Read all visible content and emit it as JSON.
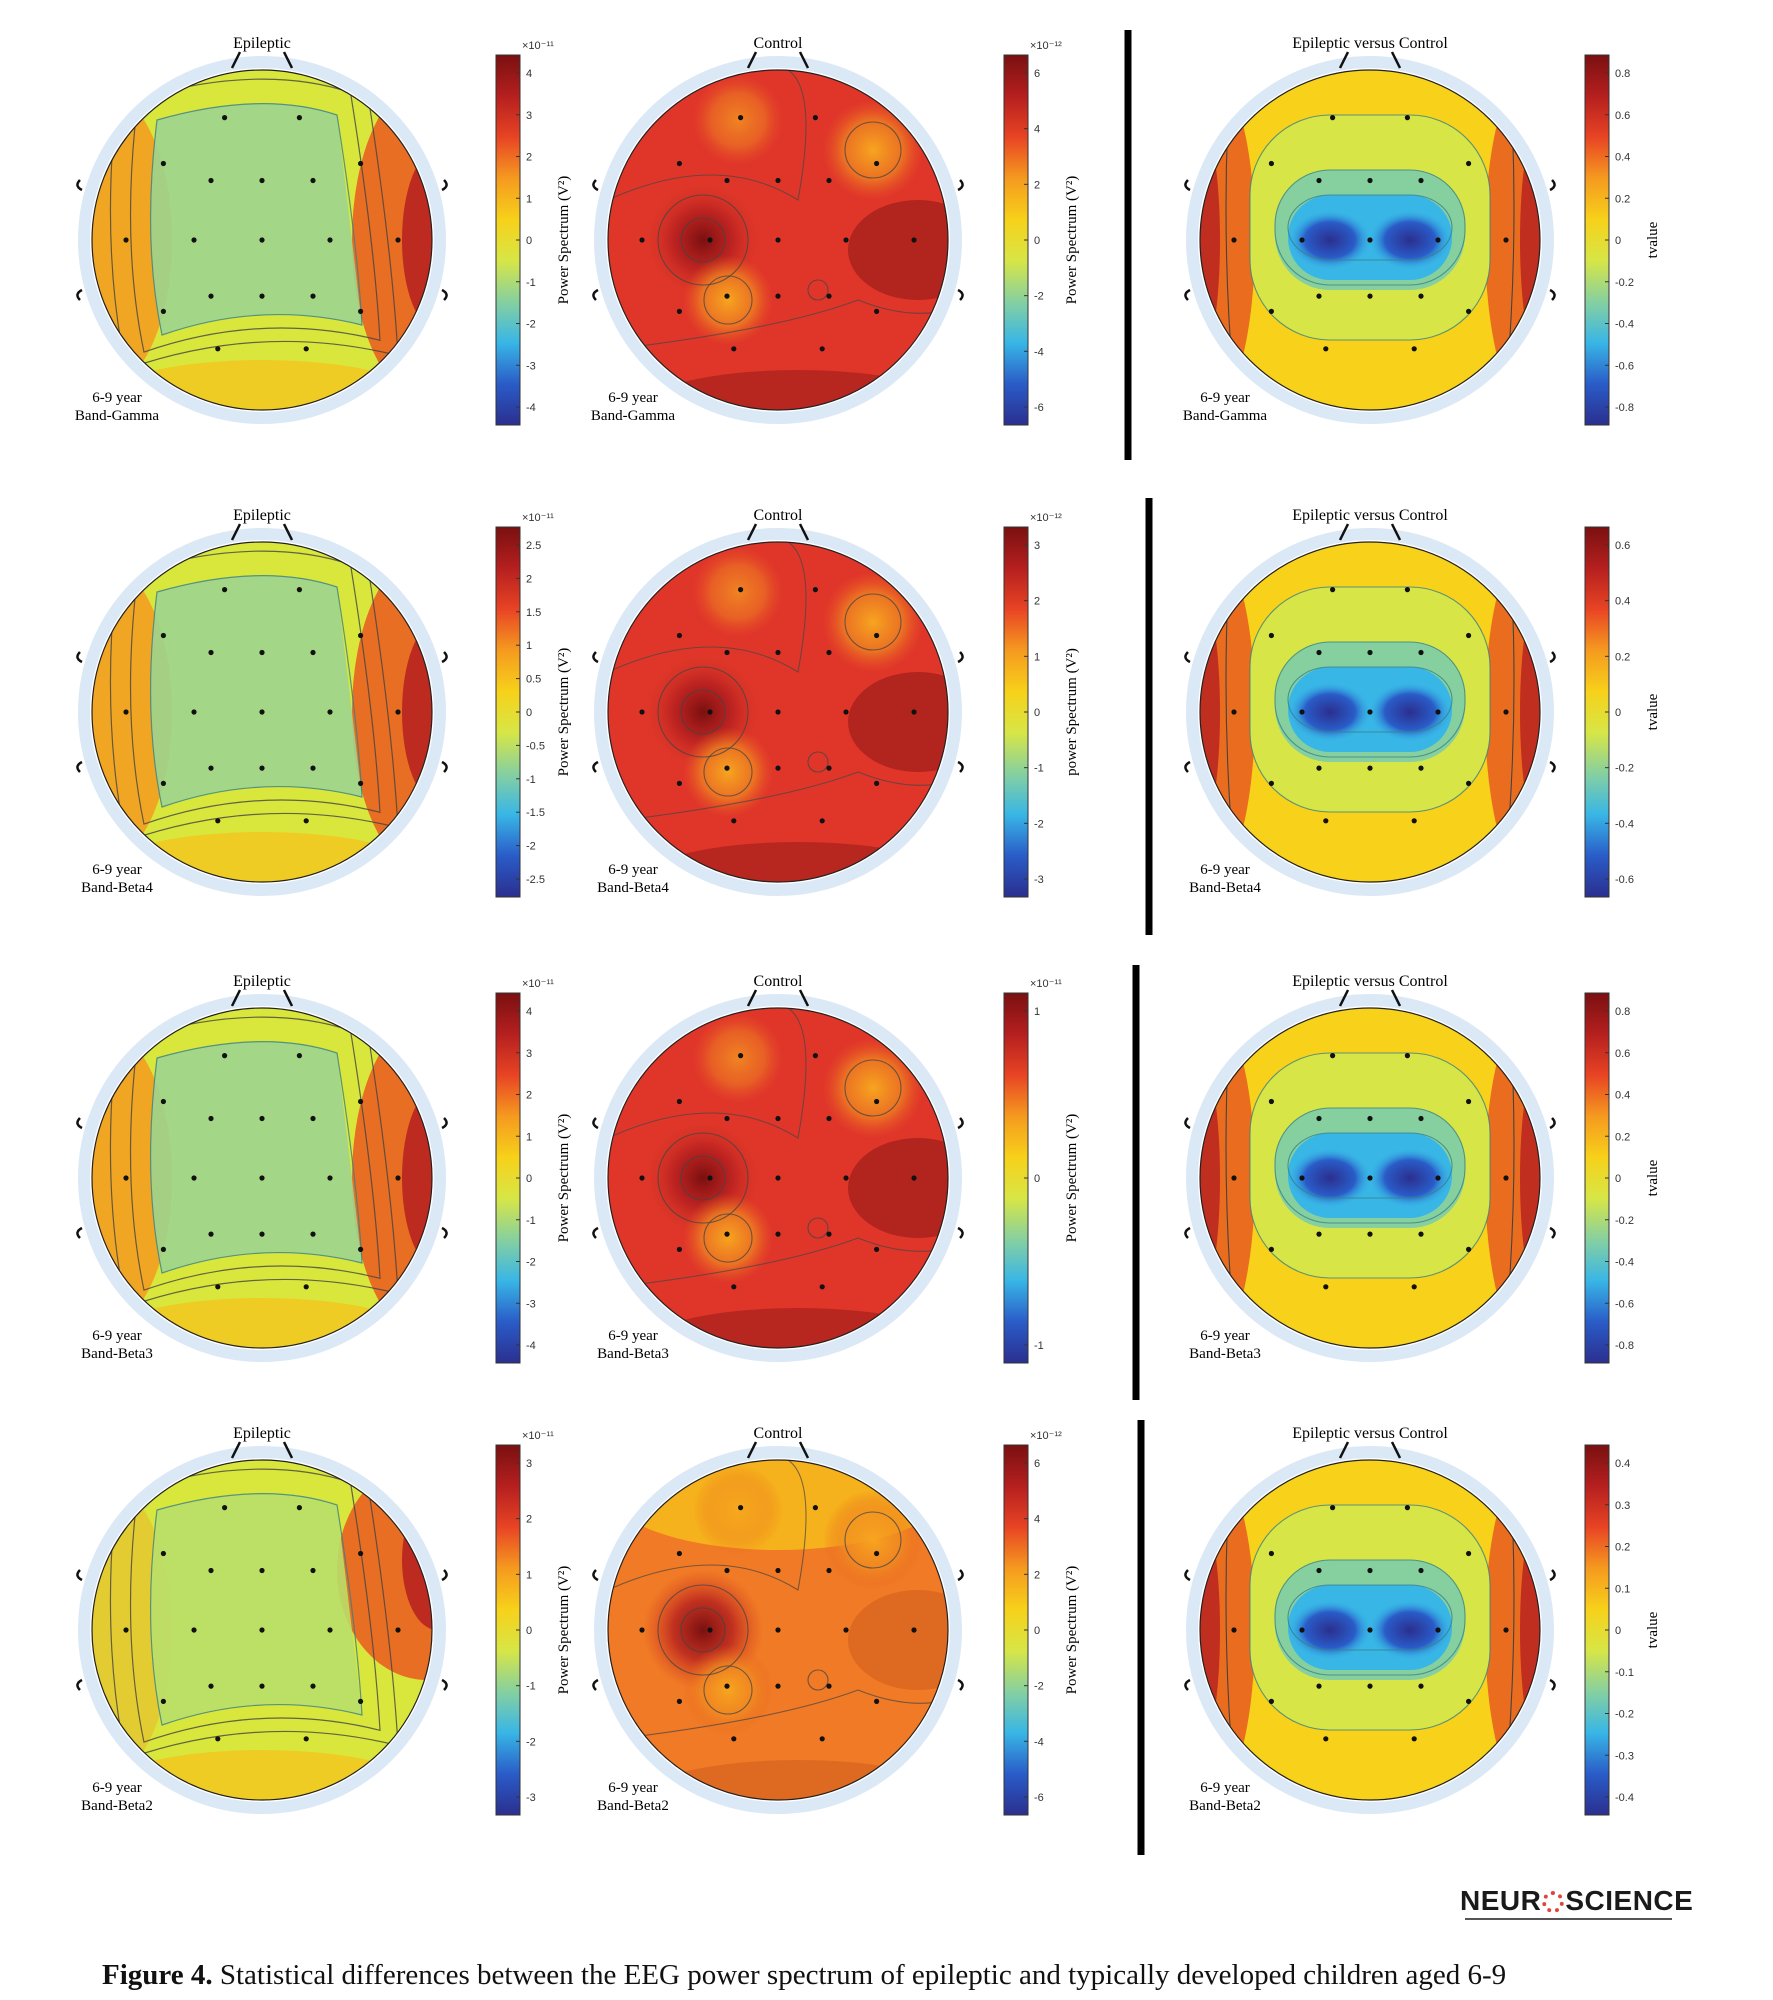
{
  "figure": {
    "caption_label": "Figure 4.",
    "caption_text": " Statistical differences between the EEG power spectrum of epileptic and typically developed children aged 6-9",
    "logo_text_left": "NEUR",
    "logo_text_right": "SCIENCE",
    "age_group": "6-9 year",
    "colormap": [
      "#2b2f8f",
      "#2a5cc8",
      "#38b6e6",
      "#86d0a0",
      "#d7e646",
      "#f7d11a",
      "#f59a1f",
      "#e84424",
      "#b51f1f",
      "#7a1010"
    ],
    "rows": [
      {
        "band": "Band-Gamma",
        "panels": [
          {
            "title": "Epileptic",
            "pattern": "epileptic",
            "cbar_label": "Power Spectrum (V²)",
            "exponent": "×10⁻¹¹",
            "ticks": [
              "4",
              "3",
              "2",
              "1",
              "0",
              "-1",
              "-2",
              "-3",
              "-4"
            ]
          },
          {
            "title": "Control",
            "pattern": "control",
            "cbar_label": "Power Spectrum (V²)",
            "exponent": "×10⁻¹²",
            "ticks": [
              "6",
              "4",
              "2",
              "0",
              "-2",
              "-4",
              "-6"
            ]
          },
          {
            "title": "Epileptic versus Control",
            "pattern": "tvalue",
            "cbar_label": "tvalue",
            "exponent": "",
            "ticks": [
              "0.8",
              "0.6",
              "0.4",
              "0.2",
              "0",
              "-0.2",
              "-0.4",
              "-0.6",
              "-0.8"
            ]
          }
        ]
      },
      {
        "band": "Band-Beta4",
        "panels": [
          {
            "title": "Epileptic",
            "pattern": "epileptic",
            "cbar_label": "Power Spectrum (V²)",
            "exponent": "×10⁻¹¹",
            "ticks": [
              "2.5",
              "2",
              "1.5",
              "1",
              "0.5",
              "0",
              "-0.5",
              "-1",
              "-1.5",
              "-2",
              "-2.5"
            ]
          },
          {
            "title": "Control",
            "pattern": "control",
            "cbar_label": "power Spectrum (V²)",
            "exponent": "×10⁻¹²",
            "ticks": [
              "3",
              "2",
              "1",
              "0",
              "-1",
              "-2",
              "-3"
            ]
          },
          {
            "title": "Epileptic versus Control",
            "pattern": "tvalue",
            "cbar_label": "tvalue",
            "exponent": "",
            "ticks": [
              "0.6",
              "0.4",
              "0.2",
              "0",
              "-0.2",
              "-0.4",
              "-0.6"
            ]
          }
        ]
      },
      {
        "band": "Band-Beta3",
        "panels": [
          {
            "title": "Epileptic",
            "pattern": "epileptic",
            "cbar_label": "Power Spectrum (V²)",
            "exponent": "×10⁻¹¹",
            "ticks": [
              "4",
              "3",
              "2",
              "1",
              "0",
              "-1",
              "-2",
              "-3",
              "-4"
            ]
          },
          {
            "title": "Control",
            "pattern": "control",
            "cbar_label": "Power Spectrum (V²)",
            "exponent": "×10⁻¹¹",
            "ticks": [
              "1",
              "0",
              "-1"
            ]
          },
          {
            "title": "Epileptic versus Control",
            "pattern": "tvalue",
            "cbar_label": "tvalue",
            "exponent": "",
            "ticks": [
              "0.8",
              "0.6",
              "0.4",
              "0.2",
              "0",
              "-0.2",
              "-0.4",
              "-0.6",
              "-0.8"
            ]
          }
        ]
      },
      {
        "band": "Band-Beta2",
        "panels": [
          {
            "title": "Epileptic",
            "pattern": "epileptic2",
            "cbar_label": "Power Spectrum (V²)",
            "exponent": "×10⁻¹¹",
            "ticks": [
              "3",
              "2",
              "1",
              "0",
              "-1",
              "-2",
              "-3"
            ]
          },
          {
            "title": "Control",
            "pattern": "control2",
            "cbar_label": "Power Spectrum (V²)",
            "exponent": "×10⁻¹²",
            "ticks": [
              "6",
              "4",
              "2",
              "0",
              "-2",
              "-4",
              "-6"
            ]
          },
          {
            "title": "Epileptic versus Control",
            "pattern": "tvalue",
            "cbar_label": "tvalue",
            "exponent": "",
            "ticks": [
              "0.4",
              "0.3",
              "0.2",
              "0.1",
              "0",
              "-0.1",
              "-0.2",
              "-0.3",
              "-0.4"
            ]
          }
        ]
      }
    ]
  }
}
